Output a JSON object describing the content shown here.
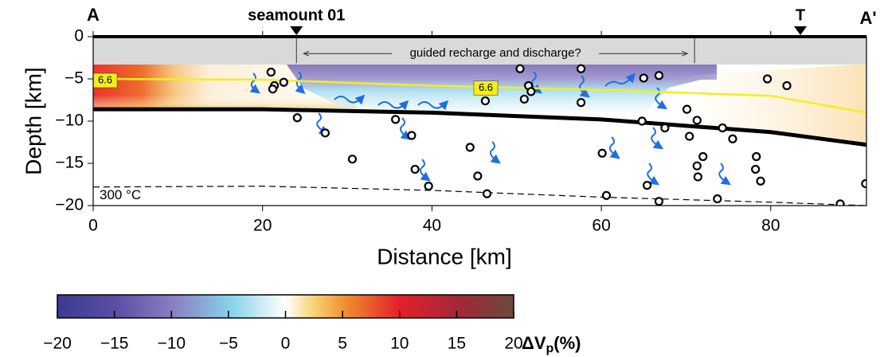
{
  "chart_data": {
    "type": "scatter",
    "xlabel": "Distance [km]",
    "ylabel": "Depth [km]",
    "xlim": [
      0,
      91.3
    ],
    "ylim": [
      -20,
      0
    ],
    "xticks": [
      0,
      20,
      40,
      60,
      80
    ],
    "yticks": [
      0,
      {
        "value": -5,
        "label": "−5"
      },
      {
        "value": -10,
        "label": "−10"
      },
      {
        "value": -15,
        "label": "−15"
      },
      {
        "value": -20,
        "label": "−20"
      }
    ],
    "section_ends": [
      "A",
      "A'"
    ],
    "markers": [
      {
        "label": "seamount 01",
        "x": 24
      },
      {
        "label": "T",
        "x": 83.5
      }
    ],
    "bracket": {
      "text": "guided recharge and discharge?",
      "x": [
        24,
        71
      ],
      "y": -2
    },
    "points": {
      "x": [
        21,
        21.4,
        21.2,
        22.5,
        24.1,
        27.4,
        30.6,
        35.7,
        37.6,
        38,
        39.6,
        44.5,
        45.4,
        46.5,
        46.3,
        50.4,
        51.4,
        51.7,
        50.9,
        57.6,
        57.6,
        65,
        66.8,
        79.6,
        81.9,
        70.1,
        71.3,
        64.8,
        67.5,
        70.4,
        74.3,
        75.5,
        60.1,
        72,
        71.3,
        71.4,
        78.3,
        78.2,
        78.8,
        65.4,
        60.6,
        66.8,
        73.7,
        88.2,
        91.2
      ],
      "y": [
        -4.2,
        -5.8,
        -6.2,
        -5.4,
        -9.6,
        -11.4,
        -14.5,
        -9.8,
        -11.7,
        -15.7,
        -17.7,
        -13.1,
        -16.5,
        -18.6,
        -7.6,
        -3.8,
        -5.8,
        -6.5,
        -7.4,
        -3.8,
        -7.8,
        -4.9,
        -4.6,
        -5,
        -5.8,
        -8.6,
        -9.9,
        -10,
        -10.8,
        -11.8,
        -10.8,
        -12.1,
        -13.8,
        -14.2,
        -15.3,
        -16.6,
        -14.2,
        -15.7,
        -17.1,
        -17.6,
        -18.8,
        -19.5,
        -19.2,
        -19.8,
        -17.4
      ]
    },
    "lines": [
      {
        "label": "6.6",
        "color": "#f5ee1c",
        "width": 2.5,
        "dash": false,
        "x": [
          0,
          20,
          40,
          60,
          80,
          91.3
        ],
        "y": [
          -5,
          -5.1,
          -5.8,
          -6.3,
          -7,
          -9
        ]
      },
      {
        "color": "#000000",
        "width": 5,
        "dash": false,
        "x": [
          0,
          20,
          40,
          60,
          80,
          91.3
        ],
        "y": [
          -8.6,
          -8.6,
          -9,
          -9.8,
          -11.3,
          -12.8
        ]
      },
      {
        "label": "300 °C",
        "color": "#000000",
        "width": 1.2,
        "dash": true,
        "x": [
          0,
          20,
          40,
          60,
          80,
          91.3
        ],
        "y": [
          -17.8,
          -17.7,
          -18.2,
          -19,
          -19.6,
          -20
        ]
      }
    ],
    "colorbar": {
      "label": {
        "main": "ΔV",
        "sub": "p",
        "unit": "(%)"
      },
      "lim": [
        -20,
        20
      ],
      "ticks": [
        {
          "value": -20,
          "label": "−20"
        },
        {
          "value": -15,
          "label": "−15"
        },
        {
          "value": -10,
          "label": "−10"
        },
        {
          "value": -5,
          "label": "−5"
        },
        0,
        5,
        10,
        15,
        20
      ]
    }
  }
}
